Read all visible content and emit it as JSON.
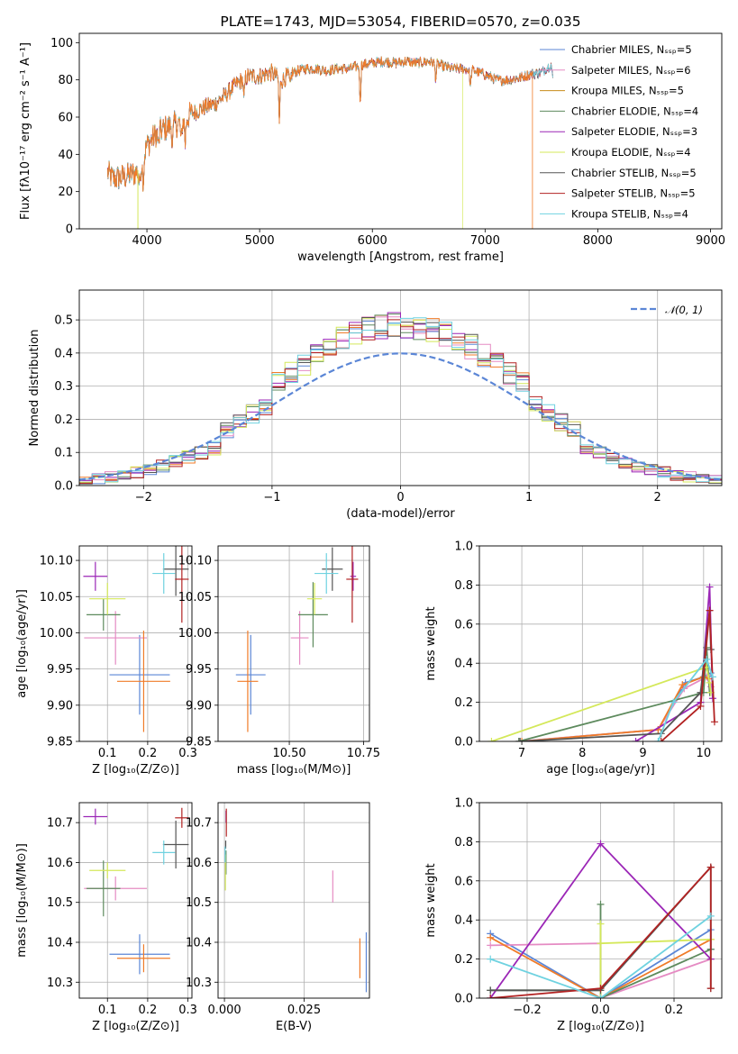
{
  "chart_data": [
    {
      "id": "spectrum",
      "type": "line",
      "title": "PLATE=1743, MJD=53054, FIBERID=0570, z=0.035",
      "xlabel": "wavelength [Angstrom, rest frame]",
      "ylabel": "Flux [fλ10⁻¹⁷ erg cm⁻² s⁻¹ A⁻¹]",
      "xlim": [
        3400,
        9100
      ],
      "ylim": [
        0,
        105
      ],
      "xticks": [
        4000,
        5000,
        6000,
        7000,
        8000,
        9000
      ],
      "yticks": [
        0,
        20,
        40,
        60,
        80,
        100
      ],
      "grid": false,
      "legend_position": "top-right",
      "continuum": {
        "x": [
          3650,
          3700,
          3800,
          3900,
          3950,
          4000,
          4100,
          4200,
          4300,
          4400,
          4500,
          4600,
          4700,
          4800,
          4900,
          5000,
          5100,
          5200,
          5300,
          5400,
          5500,
          5600,
          5700,
          5800,
          5900,
          6000,
          6100,
          6200,
          6300,
          6400,
          6500,
          6600,
          6700,
          6800,
          6900,
          7000,
          7100,
          7200,
          7300,
          7400,
          7500,
          7600
        ],
        "y": [
          30,
          27,
          28,
          30,
          34,
          45,
          52,
          55,
          57,
          62,
          65,
          67,
          72,
          78,
          82,
          82,
          84,
          80,
          84,
          86,
          86,
          85,
          86,
          86,
          88,
          89,
          90,
          89,
          90,
          89,
          90,
          88,
          86,
          86,
          85,
          83,
          80,
          80,
          81,
          83,
          84,
          89
        ]
      },
      "absorption_lines": [
        {
          "x": 3934,
          "y": 22
        },
        {
          "x": 3968,
          "y": 25
        },
        {
          "x": 4102,
          "y": 43
        },
        {
          "x": 4227,
          "y": 45
        },
        {
          "x": 4304,
          "y": 44
        },
        {
          "x": 4340,
          "y": 46
        },
        {
          "x": 4861,
          "y": 68
        },
        {
          "x": 5175,
          "y": 57
        },
        {
          "x": 5270,
          "y": 75
        },
        {
          "x": 5892,
          "y": 66
        },
        {
          "x": 6562,
          "y": 80
        },
        {
          "x": 6870,
          "y": 76
        },
        {
          "x": 7600,
          "y": 80
        }
      ],
      "series": [
        {
          "name": "Chabrier MILES, N_SSP=5",
          "color": "#5b86d6",
          "end": 7600
        },
        {
          "name": "Salpeter MILES, N_SSP=6",
          "color": "#e58bc3",
          "end": 7600
        },
        {
          "name": "Kroupa MILES, N_SSP=5",
          "color": "#c78b1a",
          "end": 7600
        },
        {
          "name": "Chabrier ELODIE, N_SSP=4",
          "color": "#5d8a5d",
          "end": 7600
        },
        {
          "name": "Salpeter ELODIE, N_SSP=3",
          "color": "#9b26b6",
          "end": 7600
        },
        {
          "name": "Kroupa ELODIE, N_SSP=4",
          "color": "#d4e85a",
          "end": 6800
        },
        {
          "name": "Chabrier STELIB, N_SSP=5",
          "color": "#555555",
          "end": 7600
        },
        {
          "name": "Salpeter STELIB, N_SSP=5",
          "color": "#b22222",
          "end": 7600
        },
        {
          "name": "Kroupa STELIB, N_SSP=4",
          "color": "#6fd2e0",
          "end": 7600
        }
      ],
      "extra_series": [
        {
          "color": "#f07b28",
          "end": 7420
        },
        {
          "color": "#d4e85a",
          "drop_at": 3920
        }
      ]
    },
    {
      "id": "residuals",
      "type": "line",
      "xlabel": "(data-model)/error",
      "ylabel": "Normed distribution",
      "xlim": [
        -2.5,
        2.5
      ],
      "ylim": [
        0,
        0.59
      ],
      "xticks": [
        -2,
        -1,
        0,
        1,
        2
      ],
      "yticks": [
        0.0,
        0.1,
        0.2,
        0.3,
        0.4,
        0.5
      ],
      "grid": true,
      "legend_position": "top-right",
      "gaussian_label": "𝒩(0, 1)",
      "gaussian_color": "#5b86d6",
      "bin_edges": [
        -2.5,
        -2.4,
        -2.3,
        -2.2,
        -2.1,
        -2.0,
        -1.9,
        -1.8,
        -1.7,
        -1.6,
        -1.5,
        -1.4,
        -1.3,
        -1.2,
        -1.1,
        -1.0,
        -0.9,
        -0.8,
        -0.7,
        -0.6,
        -0.5,
        -0.4,
        -0.3,
        -0.2,
        -0.1,
        0.0,
        0.1,
        0.2,
        0.3,
        0.4,
        0.5,
        0.6,
        0.7,
        0.8,
        0.9,
        1.0,
        1.1,
        1.2,
        1.3,
        1.4,
        1.5,
        1.6,
        1.7,
        1.8,
        1.9,
        2.0,
        2.1,
        2.2,
        2.3,
        2.4,
        2.5
      ],
      "hist_colors": [
        "#5b86d6",
        "#e58bc3",
        "#f07b28",
        "#5d8a5d",
        "#9b26b6",
        "#d4e85a",
        "#555555",
        "#b22222",
        "#6fd2e0"
      ]
    },
    {
      "id": "age_vs_Z",
      "type": "scatter",
      "xlabel": "Z [log₁₀(Z/Z⊙)]",
      "ylabel": "age  [log₁₀(age/yr)]",
      "xlim": [
        0.03,
        0.31
      ],
      "ylim": [
        9.85,
        10.12
      ],
      "xticks": [
        0.1,
        0.2,
        0.3
      ],
      "yticks": [
        9.85,
        9.9,
        9.95,
        10.0,
        10.05,
        10.1
      ],
      "grid": true,
      "points": [
        {
          "x": 0.18,
          "y": 9.942,
          "xerr": 0.075,
          "yerr": 0.055,
          "color": "#5b86d6"
        },
        {
          "x": 0.12,
          "y": 9.993,
          "xerr": 0.078,
          "yerr": 0.037,
          "color": "#e58bc3"
        },
        {
          "x": 0.19,
          "y": 9.933,
          "xerr": 0.066,
          "yerr": 0.07,
          "color": "#f07b28"
        },
        {
          "x": 0.09,
          "y": 10.025,
          "xerr": 0.042,
          "yerr": 0.022,
          "color": "#5d8a5d"
        },
        {
          "x": 0.07,
          "y": 10.078,
          "xerr": 0.03,
          "yerr": 0.02,
          "color": "#9b26b6"
        },
        {
          "x": 0.1,
          "y": 10.047,
          "xerr": 0.045,
          "yerr": 0.022,
          "color": "#d4e85a"
        },
        {
          "x": 0.27,
          "y": 10.088,
          "xerr": 0.032,
          "yerr": 0.037,
          "color": "#555555"
        },
        {
          "x": 0.285,
          "y": 10.074,
          "xerr": 0.017,
          "yerr": 0.06,
          "color": "#b22222"
        },
        {
          "x": 0.24,
          "y": 10.082,
          "xerr": 0.028,
          "yerr": 0.028,
          "color": "#6fd2e0"
        }
      ]
    },
    {
      "id": "age_vs_mass",
      "type": "scatter",
      "xlabel": "mass [log₁₀(M/M⊙)]",
      "ylabel": "",
      "xlim": [
        10.26,
        10.77
      ],
      "ylim": [
        9.85,
        10.12
      ],
      "xticks": [
        10.5,
        10.75
      ],
      "yticks": [
        9.85,
        9.9,
        9.95,
        10.0,
        10.05,
        10.1
      ],
      "grid": true,
      "points": [
        {
          "x": 10.37,
          "y": 9.942,
          "xerr": 0.05,
          "yerr": 0.055,
          "color": "#5b86d6"
        },
        {
          "x": 10.535,
          "y": 9.993,
          "xerr": 0.03,
          "yerr": 0.037,
          "color": "#e58bc3"
        },
        {
          "x": 10.36,
          "y": 9.933,
          "xerr": 0.035,
          "yerr": 0.07,
          "color": "#f07b28"
        },
        {
          "x": 10.58,
          "y": 10.025,
          "xerr": 0.05,
          "yerr": 0.045,
          "color": "#5d8a5d"
        },
        {
          "x": 10.715,
          "y": 10.078,
          "xerr": 0.01,
          "yerr": 0.02,
          "color": "#9b26b6"
        },
        {
          "x": 10.585,
          "y": 10.047,
          "xerr": 0.025,
          "yerr": 0.022,
          "color": "#d4e85a"
        },
        {
          "x": 10.645,
          "y": 10.088,
          "xerr": 0.035,
          "yerr": 0.03,
          "color": "#555555"
        },
        {
          "x": 10.712,
          "y": 10.074,
          "xerr": 0.02,
          "yerr": 0.06,
          "color": "#b22222"
        },
        {
          "x": 10.625,
          "y": 10.082,
          "xerr": 0.04,
          "yerr": 0.028,
          "color": "#6fd2e0"
        }
      ]
    },
    {
      "id": "weight_vs_age",
      "type": "line",
      "xlabel": "age  [log₁₀(age/yr)]",
      "ylabel": "mass weight",
      "xlim": [
        6.3,
        10.3
      ],
      "ylim": [
        0.0,
        1.0
      ],
      "xticks": [
        7,
        8,
        9,
        10
      ],
      "yticks": [
        0.0,
        0.2,
        0.4,
        0.6,
        0.8,
        1.0
      ],
      "grid": true,
      "series": [
        {
          "color": "#5b86d6",
          "points": [
            [
              6.97,
              0.0
            ],
            [
              9.25,
              0.06
            ],
            [
              9.7,
              0.3
            ],
            [
              10.0,
              0.33
            ],
            [
              10.12,
              0.35
            ]
          ]
        },
        {
          "color": "#e58bc3",
          "points": [
            [
              6.95,
              0.0
            ],
            [
              9.25,
              0.06
            ],
            [
              9.68,
              0.27
            ],
            [
              10.05,
              0.33
            ],
            [
              10.12,
              0.28
            ]
          ]
        },
        {
          "color": "#f07b28",
          "points": [
            [
              7.0,
              0.0
            ],
            [
              9.25,
              0.06
            ],
            [
              9.65,
              0.29
            ],
            [
              10.0,
              0.33
            ],
            [
              10.1,
              0.32
            ]
          ]
        },
        {
          "color": "#5d8a5d",
          "points": [
            [
              6.95,
              0.0
            ],
            [
              10.0,
              0.25
            ],
            [
              10.05,
              0.48
            ],
            [
              10.1,
              0.25
            ]
          ]
        },
        {
          "color": "#9b26b6",
          "points": [
            [
              8.88,
              0.0
            ],
            [
              9.95,
              0.2
            ],
            [
              10.1,
              0.79
            ],
            [
              10.15,
              0.22
            ]
          ]
        },
        {
          "color": "#d4e85a",
          "points": [
            [
              6.5,
              0.0
            ],
            [
              10.05,
              0.38
            ],
            [
              10.1,
              0.3
            ],
            [
              10.12,
              0.25
            ]
          ]
        },
        {
          "color": "#555555",
          "points": [
            [
              6.97,
              0.0
            ],
            [
              9.3,
              0.04
            ],
            [
              9.95,
              0.25
            ],
            [
              10.1,
              0.67
            ],
            [
              10.12,
              0.47
            ]
          ]
        },
        {
          "color": "#b22222",
          "points": [
            [
              9.3,
              0.0
            ],
            [
              9.95,
              0.18
            ],
            [
              10.1,
              0.67
            ],
            [
              10.18,
              0.1
            ]
          ]
        },
        {
          "color": "#6fd2e0",
          "points": [
            [
              9.25,
              0.0
            ],
            [
              9.5,
              0.2
            ],
            [
              10.05,
              0.42
            ],
            [
              10.15,
              0.33
            ]
          ]
        }
      ]
    },
    {
      "id": "mass_vs_Z",
      "type": "scatter",
      "xlabel": "Z [log₁₀(Z/Z⊙)]",
      "ylabel": "mass [log₁₀(M/M⊙)]",
      "xlim": [
        0.03,
        0.31
      ],
      "ylim": [
        10.26,
        10.75
      ],
      "xticks": [
        0.1,
        0.2,
        0.3
      ],
      "yticks": [
        10.3,
        10.4,
        10.5,
        10.6,
        10.7
      ],
      "grid": true,
      "points": [
        {
          "x": 0.18,
          "y": 10.37,
          "xerr": 0.075,
          "yerr": 0.05,
          "color": "#5b86d6"
        },
        {
          "x": 0.12,
          "y": 10.535,
          "xerr": 0.078,
          "yerr": 0.03,
          "color": "#e58bc3"
        },
        {
          "x": 0.19,
          "y": 10.36,
          "xerr": 0.066,
          "yerr": 0.035,
          "color": "#f07b28"
        },
        {
          "x": 0.09,
          "y": 10.535,
          "xerr": 0.042,
          "yerr": 0.07,
          "color": "#5d8a5d"
        },
        {
          "x": 0.07,
          "y": 10.715,
          "xerr": 0.03,
          "yerr": 0.02,
          "color": "#9b26b6"
        },
        {
          "x": 0.1,
          "y": 10.58,
          "xerr": 0.045,
          "yerr": 0.02,
          "color": "#d4e85a"
        },
        {
          "x": 0.27,
          "y": 10.645,
          "xerr": 0.032,
          "yerr": 0.06,
          "color": "#555555"
        },
        {
          "x": 0.285,
          "y": 10.712,
          "xerr": 0.017,
          "yerr": 0.025,
          "color": "#b22222"
        },
        {
          "x": 0.24,
          "y": 10.625,
          "xerr": 0.028,
          "yerr": 0.03,
          "color": "#6fd2e0"
        }
      ]
    },
    {
      "id": "mass_vs_ebv",
      "type": "scatter",
      "xlabel": "E(B-V)",
      "ylabel": "",
      "xlim": [
        -0.002,
        0.0455
      ],
      "ylim": [
        10.26,
        10.75
      ],
      "xticks": [
        0.0,
        0.025
      ],
      "yticks": [
        10.3,
        10.4,
        10.5,
        10.6,
        10.7
      ],
      "grid": true,
      "points": [
        {
          "x": 0.0445,
          "y": 10.35,
          "xerr": 0,
          "yerr": 0.075,
          "color": "#5b86d6"
        },
        {
          "x": 0.034,
          "y": 10.54,
          "xerr": 0,
          "yerr": 0.04,
          "color": "#e58bc3"
        },
        {
          "x": 0.0425,
          "y": 10.36,
          "xerr": 0,
          "yerr": 0.05,
          "color": "#f07b28"
        },
        {
          "x": 0.0005,
          "y": 10.6,
          "xerr": 0,
          "yerr": 0.03,
          "color": "#5d8a5d"
        },
        {
          "x": 0.0005,
          "y": 10.715,
          "xerr": 0,
          "yerr": 0.015,
          "color": "#9b26b6"
        },
        {
          "x": 0.0003,
          "y": 10.575,
          "xerr": 0,
          "yerr": 0.045,
          "color": "#d4e85a"
        },
        {
          "x": 0.0004,
          "y": 10.645,
          "xerr": 0,
          "yerr": 0.01,
          "color": "#555555"
        },
        {
          "x": 0.0006,
          "y": 10.7,
          "xerr": 0,
          "yerr": 0.035,
          "color": "#b22222"
        },
        {
          "x": 0.0002,
          "y": 10.62,
          "xerr": 0,
          "yerr": 0.02,
          "color": "#6fd2e0"
        }
      ]
    },
    {
      "id": "weight_vs_Z",
      "type": "line",
      "xlabel": "Z [log₁₀(Z/Z⊙)]",
      "ylabel": "mass weight",
      "xlim": [
        -0.33,
        0.33
      ],
      "ylim": [
        0.0,
        1.0
      ],
      "xticks": [
        -0.2,
        0.0,
        0.2
      ],
      "yticks": [
        0.0,
        0.2,
        0.4,
        0.6,
        0.8,
        1.0
      ],
      "grid": true,
      "series": [
        {
          "color": "#5b86d6",
          "points": [
            [
              -0.3,
              0.33
            ],
            [
              0.0,
              0.0
            ],
            [
              0.3,
              0.35
            ],
            [
              0.3,
              0.25
            ]
          ]
        },
        {
          "color": "#e58bc3",
          "points": [
            [
              -0.3,
              0.27
            ],
            [
              0.0,
              0.28
            ],
            [
              0.0,
              0.0
            ],
            [
              0.3,
              0.2
            ]
          ]
        },
        {
          "color": "#f07b28",
          "points": [
            [
              -0.3,
              0.31
            ],
            [
              0.0,
              0.0
            ],
            [
              0.3,
              0.3
            ]
          ]
        },
        {
          "color": "#5d8a5d",
          "points": [
            [
              -0.3,
              0.04
            ],
            [
              0.0,
              0.04
            ],
            [
              0.0,
              0.48
            ],
            [
              0.0,
              0.0
            ],
            [
              0.3,
              0.25
            ]
          ]
        },
        {
          "color": "#9b26b6",
          "points": [
            [
              -0.3,
              0.0
            ],
            [
              0.0,
              0.79
            ],
            [
              0.3,
              0.2
            ]
          ]
        },
        {
          "color": "#d4e85a",
          "points": [
            [
              0.0,
              0.0
            ],
            [
              0.0,
              0.38
            ],
            [
              0.0,
              0.28
            ],
            [
              0.3,
              0.3
            ]
          ]
        },
        {
          "color": "#555555",
          "points": [
            [
              -0.3,
              0.04
            ],
            [
              0.0,
              0.04
            ],
            [
              0.3,
              0.67
            ],
            [
              0.3,
              0.05
            ]
          ]
        },
        {
          "color": "#b22222",
          "points": [
            [
              -0.3,
              0.0
            ],
            [
              0.0,
              0.05
            ],
            [
              0.3,
              0.67
            ],
            [
              0.3,
              0.05
            ]
          ]
        },
        {
          "color": "#6fd2e0",
          "points": [
            [
              -0.3,
              0.2
            ],
            [
              0.0,
              0.0
            ],
            [
              0.3,
              0.42
            ]
          ]
        }
      ]
    }
  ]
}
